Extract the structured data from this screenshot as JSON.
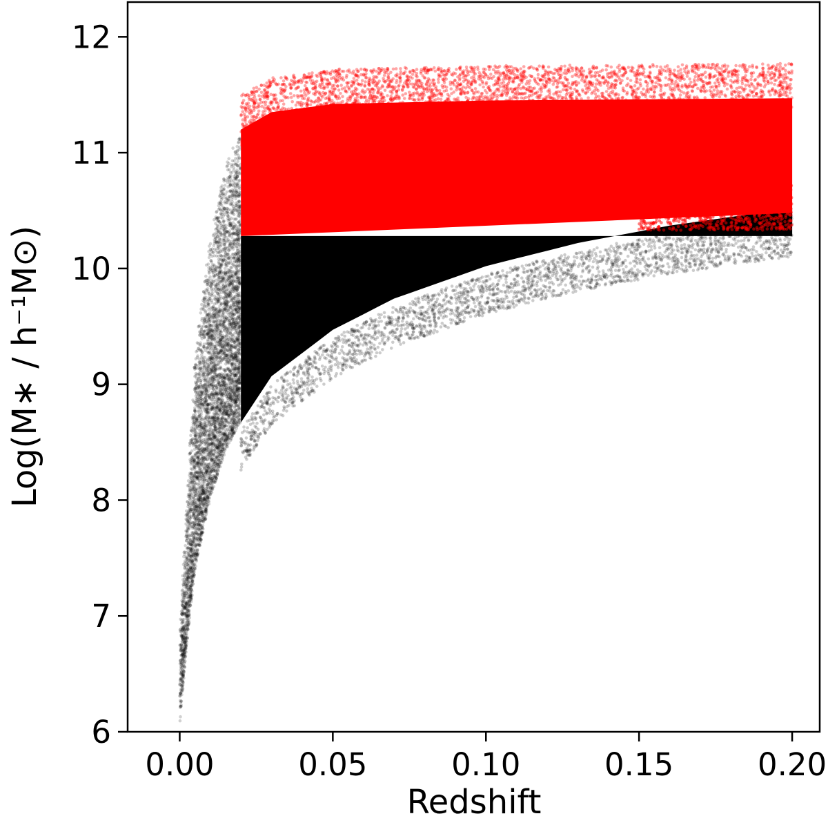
{
  "chart_data": {
    "type": "scatter",
    "title": "",
    "xlabel": "Redshift",
    "ylabel": "Log(M∗ / h⁻¹M⊙)",
    "xlim": [
      -0.017,
      0.209
    ],
    "ylim": [
      6.0,
      12.3
    ],
    "xticks": [
      0.0,
      0.05,
      0.1,
      0.15,
      0.2
    ],
    "xtick_labels": [
      "0.00",
      "0.05",
      "0.10",
      "0.15",
      "0.20"
    ],
    "yticks": [
      6,
      7,
      8,
      9,
      10,
      11,
      12
    ],
    "ytick_labels": [
      "6",
      "7",
      "8",
      "9",
      "10",
      "11",
      "12"
    ],
    "grid": false,
    "legend": "none",
    "series": [
      {
        "color": "#000000",
        "description_note": "full sample (dense black points)",
        "region": {
          "selection_edge_z": 0.02,
          "low_z_lower_bound": [
            [
              0.0,
              6.0
            ],
            [
              0.002,
              6.6
            ],
            [
              0.005,
              7.3
            ],
            [
              0.01,
              7.9
            ],
            [
              0.015,
              8.3
            ],
            [
              0.02,
              8.55
            ]
          ],
          "lower_envelope": [
            [
              0.02,
              8.55
            ],
            [
              0.03,
              8.95
            ],
            [
              0.05,
              9.35
            ],
            [
              0.07,
              9.62
            ],
            [
              0.1,
              9.9
            ],
            [
              0.13,
              10.1
            ],
            [
              0.16,
              10.25
            ],
            [
              0.2,
              10.4
            ]
          ],
          "upper_envelope_low_z": [
            [
              0.0,
              6.9
            ],
            [
              0.005,
              9.3
            ],
            [
              0.01,
              10.3
            ],
            [
              0.015,
              10.9
            ],
            [
              0.02,
              11.2
            ]
          ]
        }
      },
      {
        "color": "#ff0000",
        "description_note": "mass-selected subsample (red points)",
        "region": {
          "z_range": [
            0.02,
            0.2
          ],
          "mass_cut": 10.28,
          "upper_envelope": [
            [
              0.02,
              11.4
            ],
            [
              0.03,
              11.55
            ],
            [
              0.05,
              11.62
            ],
            [
              0.1,
              11.65
            ],
            [
              0.15,
              11.66
            ],
            [
              0.2,
              11.67
            ]
          ]
        }
      }
    ]
  }
}
